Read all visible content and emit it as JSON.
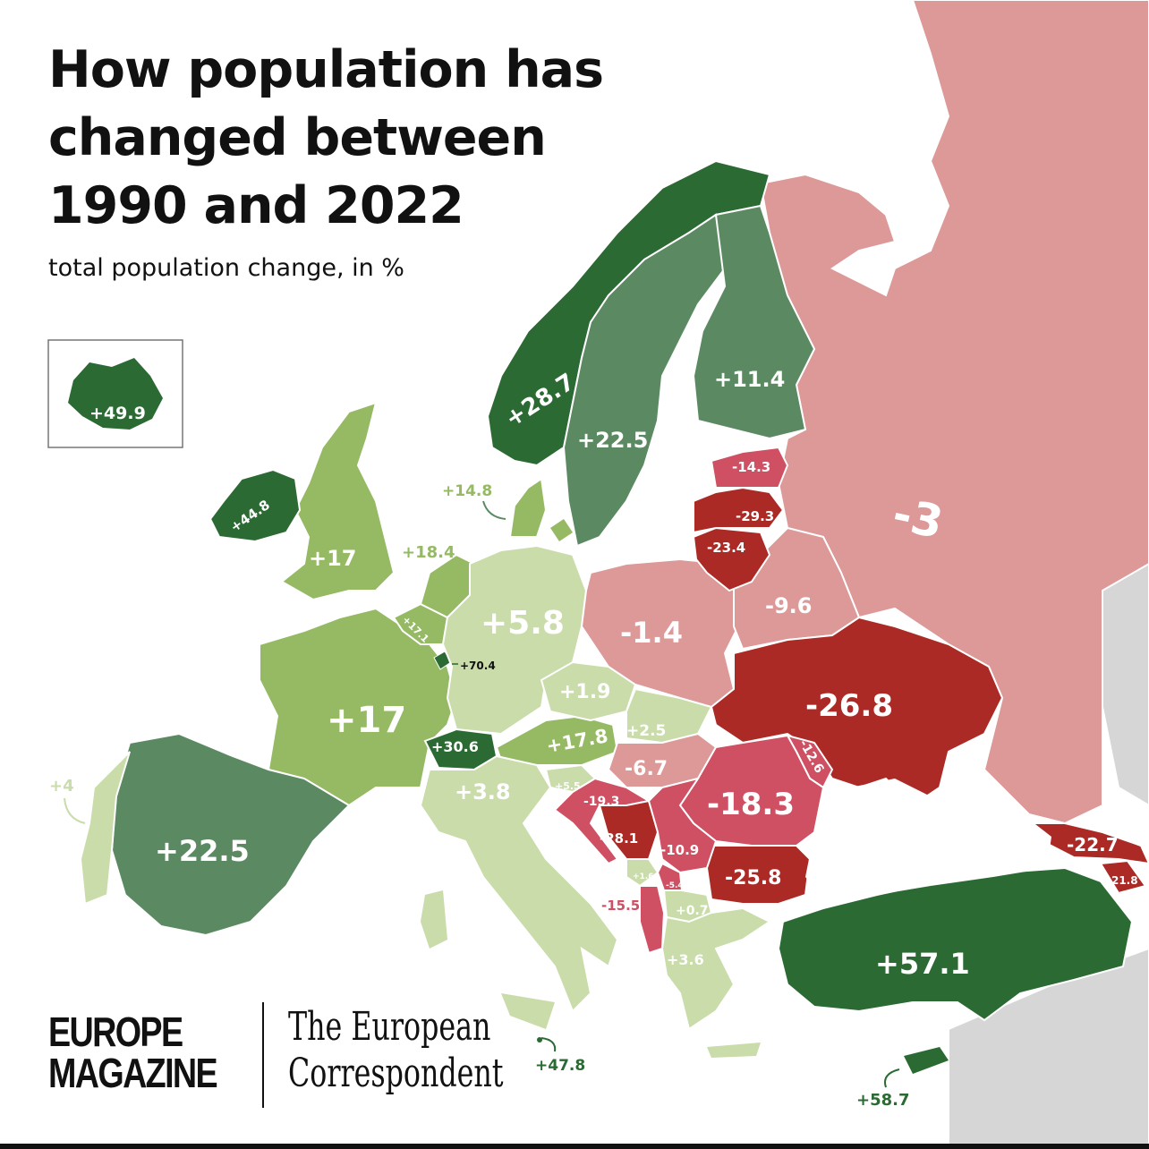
{
  "title_lines": [
    "How population has",
    "changed between",
    "1990 and 2022"
  ],
  "subtitle": "total population change, in %",
  "colors": {
    "strong_growth": "#2b6a33",
    "growth": "#5b8a62",
    "moderate_growth": "#95ba63",
    "slight_growth": "#c9dcaa",
    "slight_decline": "#dd9898",
    "decline": "#cf4f63",
    "strong_decline": "#ab2a25",
    "no_data": "#d6d6d6"
  },
  "countries": [
    {
      "name": "Iceland",
      "label": "+49.9",
      "value": 49.9
    },
    {
      "name": "Norway",
      "label": "+28.7",
      "value": 28.7
    },
    {
      "name": "Sweden",
      "label": "+22.5",
      "value": 22.5
    },
    {
      "name": "Finland",
      "label": "+11.4",
      "value": 11.4
    },
    {
      "name": "Russia",
      "label": "-3",
      "value": -3
    },
    {
      "name": "Estonia",
      "label": "-14.3",
      "value": -14.3
    },
    {
      "name": "Latvia",
      "label": "-29.3",
      "value": -29.3
    },
    {
      "name": "Lithuania",
      "label": "-23.4",
      "value": -23.4
    },
    {
      "name": "Belarus",
      "label": "-9.6",
      "value": -9.6
    },
    {
      "name": "Poland",
      "label": "-1.4",
      "value": -1.4
    },
    {
      "name": "Ukraine",
      "label": "-26.8",
      "value": -26.8
    },
    {
      "name": "Moldova",
      "label": "-12.6",
      "value": -12.6
    },
    {
      "name": "Romania",
      "label": "-18.3",
      "value": -18.3
    },
    {
      "name": "Bulgaria",
      "label": "-25.8",
      "value": -25.8
    },
    {
      "name": "Georgia",
      "label": "-22.7",
      "value": -22.7
    },
    {
      "name": "Armenia",
      "label": "-21.8",
      "value": -21.8
    },
    {
      "name": "Turkey",
      "label": "+57.1",
      "value": 57.1
    },
    {
      "name": "Cyprus",
      "label": "+58.7",
      "value": 58.7
    },
    {
      "name": "Greece",
      "label": "+3.6",
      "value": 3.6
    },
    {
      "name": "North Macedonia",
      "label": "+0.7",
      "value": 0.7
    },
    {
      "name": "Albania",
      "label": "-15.5",
      "value": -15.5
    },
    {
      "name": "Montenegro",
      "label": "+1.6",
      "value": 1.6
    },
    {
      "name": "Kosovo",
      "label": "-5.4",
      "value": -5.4
    },
    {
      "name": "Serbia",
      "label": "-10.9",
      "value": -10.9
    },
    {
      "name": "Bosnia and Herzegovina",
      "label": "-28.1",
      "value": -28.1
    },
    {
      "name": "Croatia",
      "label": "-19.3",
      "value": -19.3
    },
    {
      "name": "Slovenia",
      "label": "+5.5",
      "value": 5.5
    },
    {
      "name": "Hungary",
      "label": "-6.7",
      "value": -6.7
    },
    {
      "name": "Slovakia",
      "label": "+2.5",
      "value": 2.5
    },
    {
      "name": "Czechia",
      "label": "+1.9",
      "value": 1.9
    },
    {
      "name": "Austria",
      "label": "+17.8",
      "value": 17.8
    },
    {
      "name": "Switzerland",
      "label": "+30.6",
      "value": 30.6
    },
    {
      "name": "Italy",
      "label": "+3.8",
      "value": 3.8
    },
    {
      "name": "Malta",
      "label": "+47.8",
      "value": 47.8
    },
    {
      "name": "Germany",
      "label": "+5.8",
      "value": 5.8
    },
    {
      "name": "Denmark",
      "label": "+14.8",
      "value": 14.8
    },
    {
      "name": "Netherlands",
      "label": "+18.4",
      "value": 18.4
    },
    {
      "name": "Belgium",
      "label": "+17.1",
      "value": 17.1
    },
    {
      "name": "Luxembourg",
      "label": "+70.4",
      "value": 70.4
    },
    {
      "name": "France",
      "label": "+17",
      "value": 17
    },
    {
      "name": "United Kingdom",
      "label": "+17",
      "value": 17
    },
    {
      "name": "Ireland",
      "label": "+44.8",
      "value": 44.8
    },
    {
      "name": "Spain",
      "label": "+22.5",
      "value": 22.5
    },
    {
      "name": "Portugal",
      "label": "+4",
      "value": 4
    }
  ],
  "branding": {
    "left_line1": "EUROPE",
    "left_line2": "MAGAZINE",
    "right_line1": "The European",
    "right_line2": "Correspondent"
  }
}
